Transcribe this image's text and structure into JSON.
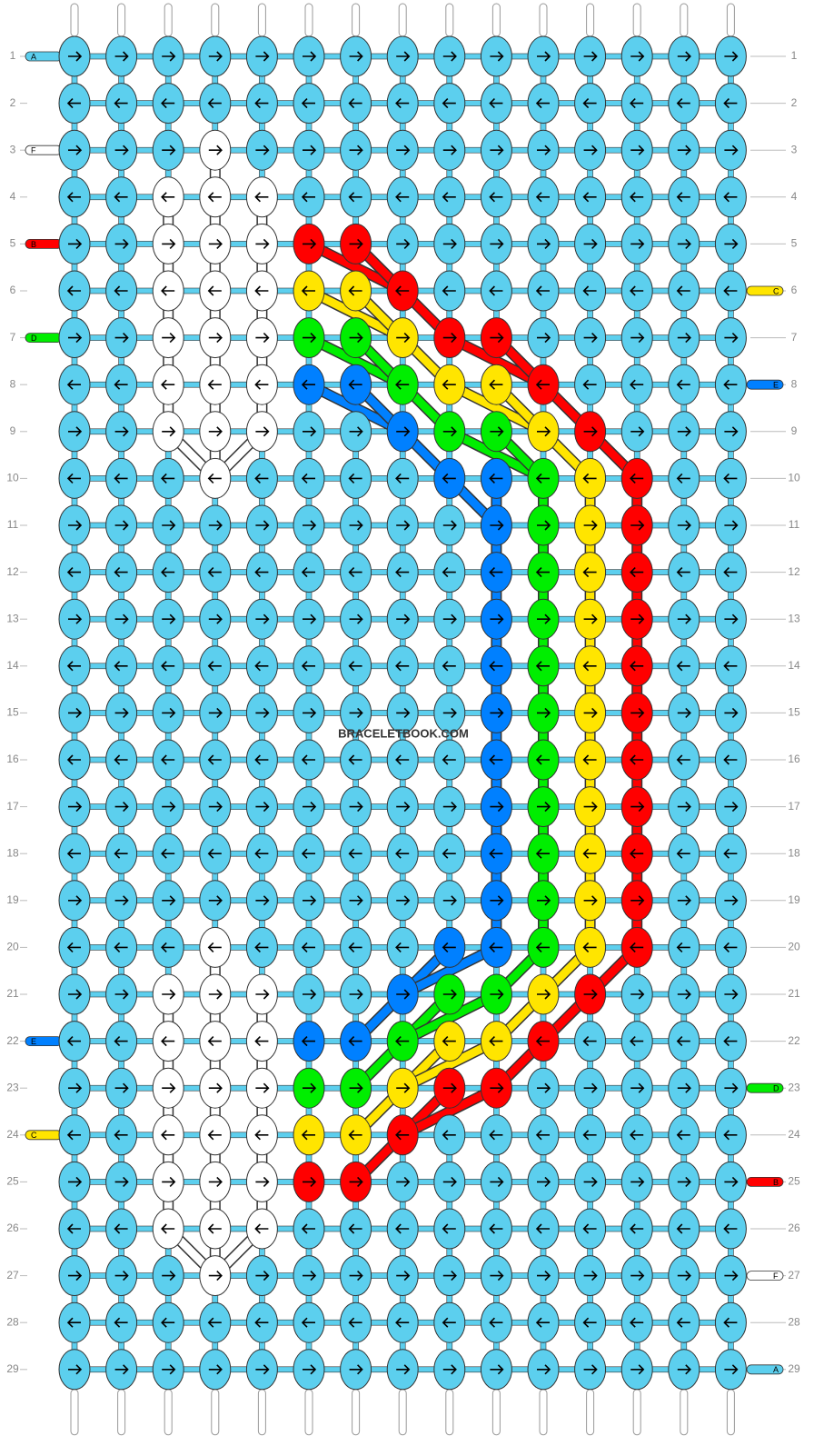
{
  "watermark": "BRACELETBOOK.COM",
  "colors": {
    "A": "#5ccfee",
    "B": "#ff0000",
    "C": "#ffe500",
    "D": "#00ee00",
    "E": "#0080ff",
    "F": "#ffffff"
  },
  "rows": [
    {
      "label": 1,
      "dir": "right",
      "knots": "AAAAAAAAAAAAAAA",
      "left": "A"
    },
    {
      "label": 2,
      "dir": "left",
      "knots": "AAAAAAAAAAAAAAA"
    },
    {
      "label": 3,
      "dir": "right",
      "knots": "AAAFAAAAAAAAAAA",
      "left": "F"
    },
    {
      "label": 4,
      "dir": "left",
      "knots": "AAFFFAAAAAAAAAA"
    },
    {
      "label": 5,
      "dir": "right",
      "knots": "AAFFFBBAAAAAAAA",
      "left": "B"
    },
    {
      "label": 6,
      "dir": "left",
      "knots": "AAFFFCCBAAAAAAA",
      "right": "C"
    },
    {
      "label": 7,
      "dir": "right",
      "knots": "AAFFFDDCBBAAAAA",
      "left": "D"
    },
    {
      "label": 8,
      "dir": "left",
      "knots": "AAFFFEEDCCBAAAA",
      "right": "E"
    },
    {
      "label": 9,
      "dir": "right",
      "knots": "AAFFFAAEDDCBAAA"
    },
    {
      "label": 10,
      "dir": "left",
      "knots": "AAAFAAAAEEDCBAA"
    },
    {
      "label": 11,
      "dir": "right",
      "knots": "AAAAAAAAAEDCBAA"
    },
    {
      "label": 12,
      "dir": "left",
      "knots": "AAAAAAAAAEDCBAA"
    },
    {
      "label": 13,
      "dir": "right",
      "knots": "AAAAAAAAAEDCBAA"
    },
    {
      "label": 14,
      "dir": "left",
      "knots": "AAAAAAAAAEDCBAA"
    },
    {
      "label": 15,
      "dir": "right",
      "knots": "AAAAAAAAAEDCBAA"
    },
    {
      "label": 16,
      "dir": "left",
      "knots": "AAAAAAAAAEDCBAA"
    },
    {
      "label": 17,
      "dir": "right",
      "knots": "AAAAAAAAAEDCBAA"
    },
    {
      "label": 18,
      "dir": "left",
      "knots": "AAAAAAAAAEDCBAA"
    },
    {
      "label": 19,
      "dir": "right",
      "knots": "AAAAAAAAAEDCBAA"
    },
    {
      "label": 20,
      "dir": "left",
      "knots": "AAAFAAAAEEDCBAA"
    },
    {
      "label": 21,
      "dir": "right",
      "knots": "AAFFFAAEDDCBAAA"
    },
    {
      "label": 22,
      "dir": "left",
      "knots": "AAFFFEEDCCBAAAA",
      "left": "E"
    },
    {
      "label": 23,
      "dir": "right",
      "knots": "AAFFFDDCBBAAAAA",
      "right": "D"
    },
    {
      "label": 24,
      "dir": "left",
      "knots": "AAFFFCCBAAAAAAA",
      "left": "C"
    },
    {
      "label": 25,
      "dir": "right",
      "knots": "AAFFFBBAAAAAAAA",
      "right": "B"
    },
    {
      "label": 26,
      "dir": "left",
      "knots": "AAFFFAAAAAAAAAA"
    },
    {
      "label": 27,
      "dir": "right",
      "knots": "AAAFAAAAAAAAAAA",
      "right": "F"
    },
    {
      "label": 28,
      "dir": "left",
      "knots": "AAAAAAAAAAAAAAA"
    },
    {
      "label": 29,
      "dir": "right",
      "knots": "AAAAAAAAAAAAAAA",
      "right": "A"
    }
  ]
}
